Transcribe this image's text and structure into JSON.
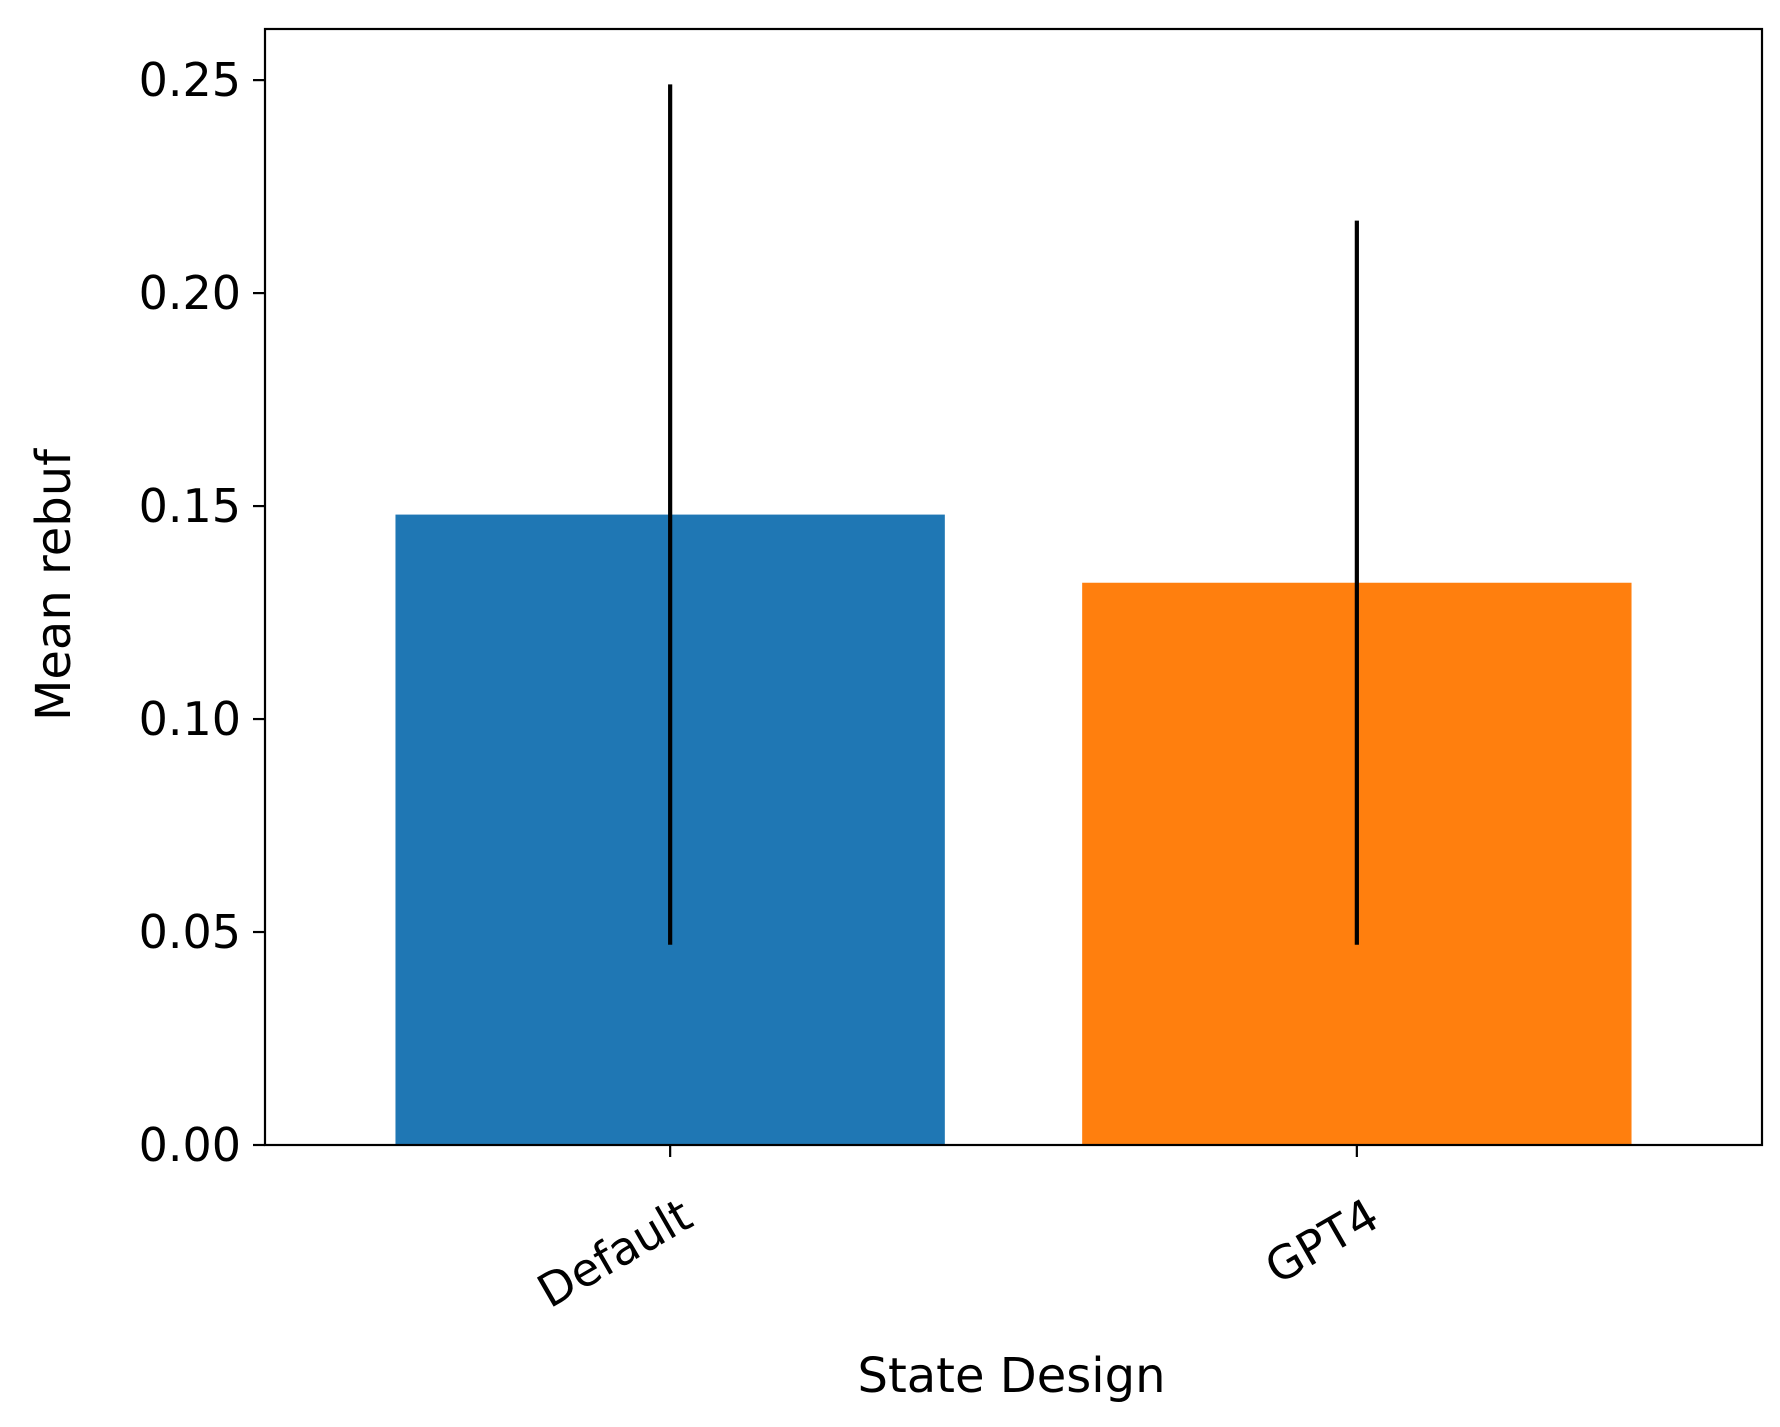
{
  "chart_data": {
    "type": "bar",
    "title": "",
    "xlabel": "State Design",
    "ylabel": "Mean rebuf",
    "categories": [
      "Default",
      "GPT4"
    ],
    "values": [
      0.148,
      0.132
    ],
    "error_low": [
      0.047,
      0.047
    ],
    "error_high": [
      0.249,
      0.217
    ],
    "ylim": [
      0,
      0.262
    ],
    "yticks": [
      0.0,
      0.05,
      0.1,
      0.15,
      0.2,
      0.25
    ],
    "ytick_labels": [
      "0.00",
      "0.05",
      "0.10",
      "0.15",
      "0.20",
      "0.25"
    ],
    "xtick_rotation": -30,
    "grid": false,
    "legend": "none",
    "colors": [
      "#1f77b4",
      "#ff7f0e"
    ],
    "error_color": "#000000"
  }
}
